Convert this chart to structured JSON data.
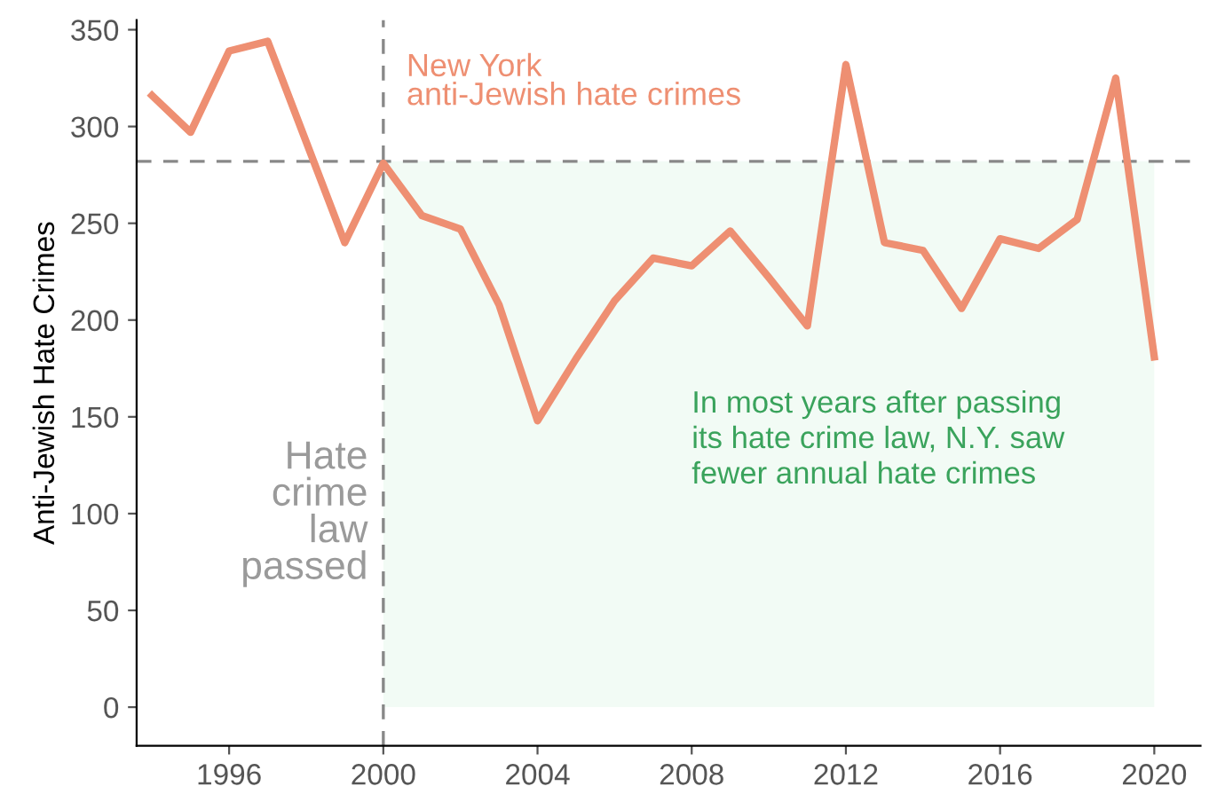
{
  "chart_data": {
    "type": "line",
    "ylabel": "Anti-Jewish Hate Crimes",
    "x": [
      1994,
      1995,
      1996,
      1997,
      1998,
      1999,
      2000,
      2001,
      2002,
      2003,
      2004,
      2005,
      2006,
      2007,
      2008,
      2009,
      2010,
      2011,
      2012,
      2013,
      2014,
      2015,
      2016,
      2017,
      2018,
      2019,
      2020
    ],
    "series": [
      {
        "name": "New York\nanti-Jewish hate crimes",
        "color": "#ee8f72",
        "values": [
          316,
          297,
          339,
          344,
          292,
          240,
          281,
          254,
          247,
          208,
          148,
          180,
          210,
          232,
          228,
          246,
          222,
          197,
          332,
          240,
          236,
          206,
          242,
          237,
          252,
          325,
          181
        ]
      }
    ],
    "xlim": [
      1993.6,
      2021.2
    ],
    "ylim": [
      -20,
      355
    ],
    "xticks": [
      1996,
      2000,
      2004,
      2008,
      2012,
      2016,
      2020
    ],
    "yticks": [
      0,
      50,
      100,
      150,
      200,
      250,
      300,
      350
    ],
    "ref_lines": [
      {
        "axis": "x",
        "value": 2000,
        "label": "Hate\ncrime\nlaw\npassed",
        "color": "#888888",
        "line_style": "dashed"
      },
      {
        "axis": "y",
        "value": 282,
        "label": null,
        "color": "#888888",
        "line_style": "dashed"
      }
    ],
    "bands": [
      {
        "axis": "x",
        "from": 2000,
        "to": 2020,
        "label": "In most years after passing\nits hate crime law, N.Y. saw\nfewer annual hate crimes",
        "color": "#f2fbf5"
      }
    ],
    "grid": false,
    "legend": false,
    "marker": "none",
    "line_style": "solid"
  }
}
